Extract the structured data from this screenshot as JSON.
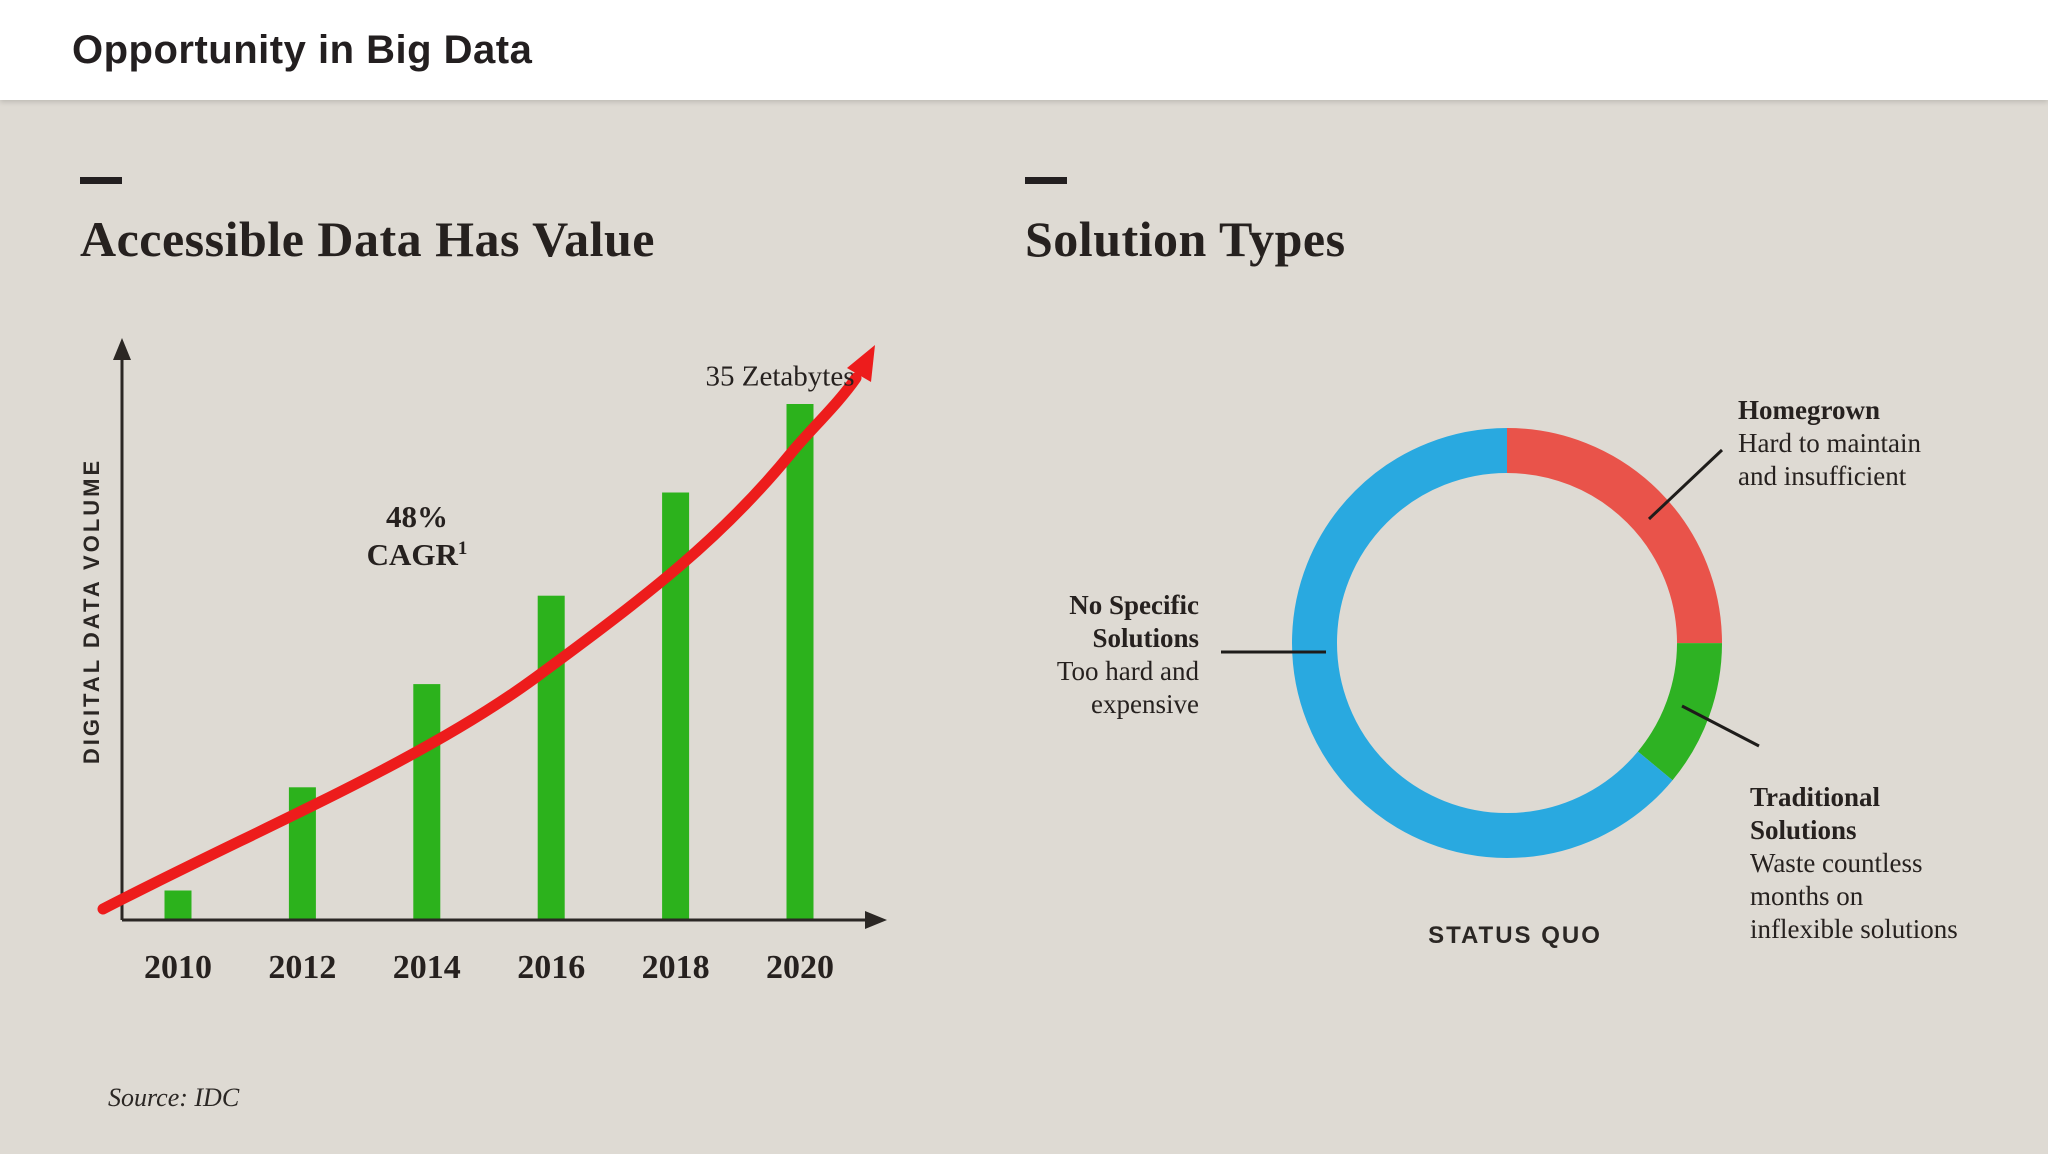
{
  "header": {
    "title": "Opportunity in Big Data"
  },
  "sections": {
    "left": {
      "title": "Accessible Data Has Value"
    },
    "right": {
      "title": "Solution Types"
    }
  },
  "source_note": "Source: IDC",
  "colors": {
    "background": "#dedad3",
    "header_background": "#ffffff",
    "text": "#231f20",
    "axis": "#2b2724",
    "bar_green": "#2cb21c",
    "curve_red": "#ed1c1c",
    "donut_red": "#e9534a",
    "donut_green": "#2eb223",
    "donut_blue": "#29a9e0"
  },
  "chart_data": [
    {
      "type": "bar",
      "title": "Accessible Data Has Value",
      "categories": [
        "2010",
        "2012",
        "2014",
        "2016",
        "2018",
        "2020"
      ],
      "values": [
        2,
        9,
        16,
        22,
        29,
        35
      ],
      "value_unit": "Zetabytes",
      "xlabel": "",
      "ylabel": "DIGITAL DATA VOLUME",
      "ylim": [
        0,
        38
      ],
      "grid": false,
      "bar_color": "#2cb21c",
      "trend_line": {
        "color": "#ed1c1c",
        "shape": "exponential growth curve with arrowhead"
      },
      "annotations": [
        {
          "text_line1": "48%",
          "text_line2": "CAGR",
          "footnote_marker": "1"
        },
        {
          "text": "35 Zetabytes"
        }
      ]
    },
    {
      "type": "pie",
      "subtype": "donut",
      "title": "Solution Types",
      "center_caption": "STATUS QUO",
      "start": "top",
      "direction": "clockwise",
      "legend_position": "callouts",
      "segments": [
        {
          "name_lines": [
            "Homegrown"
          ],
          "desc_lines": [
            "Hard to maintain",
            "and insufficient"
          ],
          "value": 25,
          "color": "#e9534a"
        },
        {
          "name_lines": [
            "Traditional",
            "Solutions"
          ],
          "desc_lines": [
            "Waste countless",
            "months on",
            "inflexible solutions"
          ],
          "value": 11,
          "color": "#2eb223"
        },
        {
          "name_lines": [
            "No Specific",
            "Solutions"
          ],
          "desc_lines": [
            "Too hard and",
            "expensive"
          ],
          "value": 64,
          "color": "#29a9e0"
        }
      ]
    }
  ]
}
